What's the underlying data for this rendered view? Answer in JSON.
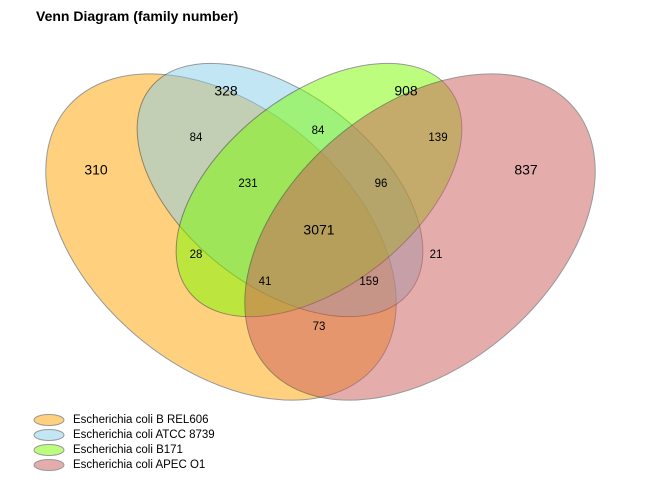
{
  "title": "Venn Diagram (family number)",
  "sets": [
    {
      "name": "Escherichia coli B REL606",
      "color": "#FFA500"
    },
    {
      "name": "Escherichia coli ATCC 8739",
      "color": "#87CEEB"
    },
    {
      "name": "Escherichia coli B171",
      "color": "#7CFC00"
    },
    {
      "name": "Escherichia coli APEC O1",
      "color": "#CD5C5C"
    }
  ],
  "regions": [
    {
      "id": "A",
      "value": "310"
    },
    {
      "id": "B",
      "value": "328"
    },
    {
      "id": "C",
      "value": "908"
    },
    {
      "id": "D",
      "value": "837"
    },
    {
      "id": "AB",
      "value": "84"
    },
    {
      "id": "BC",
      "value": "84"
    },
    {
      "id": "CD",
      "value": "139"
    },
    {
      "id": "ABC",
      "value": "231"
    },
    {
      "id": "BCD",
      "value": "96"
    },
    {
      "id": "ABCD",
      "value": "3071"
    },
    {
      "id": "AC",
      "value": "28"
    },
    {
      "id": "BD",
      "value": "21"
    },
    {
      "id": "ACD",
      "value": "41"
    },
    {
      "id": "ABD",
      "value": "159"
    },
    {
      "id": "AD",
      "value": "73"
    }
  ]
}
